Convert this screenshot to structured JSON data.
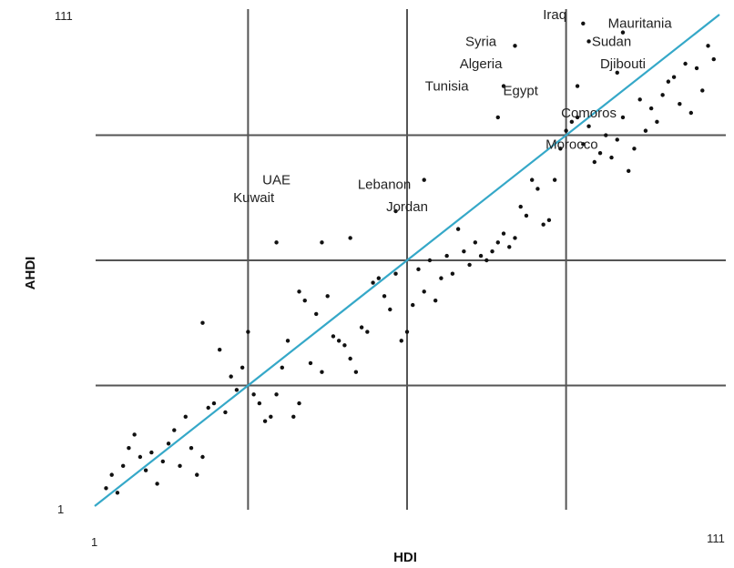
{
  "chart_data": {
    "type": "scatter",
    "title": "",
    "xlabel": "HDI",
    "ylabel": "AHDI",
    "xlim": [
      1,
      111
    ],
    "ylim": [
      1,
      111
    ],
    "x_tick_labels": [
      "1",
      "111"
    ],
    "y_tick_labels": [
      "1",
      "111"
    ],
    "grid_lines": {
      "x": [
        28,
        56,
        84
      ],
      "y": [
        28,
        56,
        84
      ]
    },
    "diagonal": {
      "from": [
        1,
        1
      ],
      "to": [
        111,
        111
      ],
      "color": "#35a8c8"
    },
    "series": [
      {
        "points": [
          [
            3,
            5
          ],
          [
            5,
            4
          ],
          [
            4,
            8
          ],
          [
            6,
            10
          ],
          [
            7,
            14
          ],
          [
            8,
            17
          ],
          [
            9,
            12
          ],
          [
            10,
            9
          ],
          [
            11,
            13
          ],
          [
            12,
            6
          ],
          [
            13,
            11
          ],
          [
            14,
            15
          ],
          [
            15,
            18
          ],
          [
            16,
            10
          ],
          [
            17,
            21
          ],
          [
            18,
            14
          ],
          [
            19,
            8
          ],
          [
            20,
            12
          ],
          [
            21,
            23
          ],
          [
            22,
            24
          ],
          [
            23,
            36
          ],
          [
            24,
            22
          ],
          [
            25,
            30
          ],
          [
            26,
            27
          ],
          [
            27,
            32
          ],
          [
            29,
            26
          ],
          [
            30,
            24
          ],
          [
            31,
            20
          ],
          [
            32,
            21
          ],
          [
            33,
            26
          ],
          [
            34,
            32
          ],
          [
            35,
            38
          ],
          [
            36,
            21
          ],
          [
            37,
            24
          ],
          [
            38,
            47
          ],
          [
            39,
            33
          ],
          [
            40,
            44
          ],
          [
            41,
            31
          ],
          [
            42,
            48
          ],
          [
            43,
            39
          ],
          [
            44,
            38
          ],
          [
            45,
            37
          ],
          [
            46,
            34
          ],
          [
            47,
            31
          ],
          [
            48,
            41
          ],
          [
            49,
            40
          ],
          [
            50,
            51
          ],
          [
            51,
            52
          ],
          [
            52,
            48
          ],
          [
            53,
            45
          ],
          [
            54,
            53
          ],
          [
            55,
            38
          ],
          [
            56,
            40
          ],
          [
            57,
            46
          ],
          [
            58,
            54
          ],
          [
            59,
            49
          ],
          [
            60,
            56
          ],
          [
            61,
            47
          ],
          [
            62,
            52
          ],
          [
            63,
            57
          ],
          [
            64,
            53
          ],
          [
            65,
            63
          ],
          [
            66,
            58
          ],
          [
            67,
            55
          ],
          [
            68,
            60
          ],
          [
            69,
            57
          ],
          [
            70,
            56
          ],
          [
            71,
            58
          ],
          [
            72,
            60
          ],
          [
            73,
            62
          ],
          [
            74,
            59
          ],
          [
            75,
            61
          ],
          [
            76,
            68
          ],
          [
            77,
            66
          ],
          [
            78,
            74
          ],
          [
            79,
            72
          ],
          [
            80,
            64
          ],
          [
            81,
            65
          ],
          [
            82,
            74
          ],
          [
            83,
            81
          ],
          [
            84,
            85
          ],
          [
            85,
            87
          ],
          [
            86,
            88
          ],
          [
            87,
            82
          ],
          [
            88,
            86
          ],
          [
            89,
            78
          ],
          [
            90,
            80
          ],
          [
            91,
            84
          ],
          [
            92,
            79
          ],
          [
            93,
            83
          ],
          [
            94,
            88
          ],
          [
            95,
            76
          ],
          [
            96,
            81
          ],
          [
            97,
            92
          ],
          [
            98,
            85
          ],
          [
            99,
            90
          ],
          [
            100,
            87
          ],
          [
            101,
            93
          ],
          [
            102,
            96
          ],
          [
            103,
            97
          ],
          [
            104,
            91
          ],
          [
            105,
            100
          ],
          [
            106,
            89
          ],
          [
            107,
            99
          ],
          [
            108,
            94
          ],
          [
            109,
            104
          ],
          [
            110,
            101
          ],
          [
            72,
            88
          ],
          [
            73,
            95
          ],
          [
            75,
            104
          ],
          [
            87,
            109
          ],
          [
            88,
            105
          ],
          [
            94,
            107
          ],
          [
            86,
            95
          ],
          [
            93,
            98
          ],
          [
            59,
            74
          ],
          [
            54,
            67
          ],
          [
            46,
            61
          ],
          [
            41,
            60
          ],
          [
            37,
            49
          ],
          [
            33,
            60
          ],
          [
            28,
            40
          ],
          [
            20,
            42
          ]
        ],
        "color": "#111111"
      }
    ],
    "annotations": [
      {
        "text": "Iraq",
        "x": 82,
        "y": 110
      },
      {
        "text": "Mauritania",
        "x": 97,
        "y": 108
      },
      {
        "text": "Sudan",
        "x": 92,
        "y": 104
      },
      {
        "text": "Syria",
        "x": 69,
        "y": 104
      },
      {
        "text": "Algeria",
        "x": 69,
        "y": 99
      },
      {
        "text": "Djibouti",
        "x": 94,
        "y": 99
      },
      {
        "text": "Tunisia",
        "x": 63,
        "y": 94
      },
      {
        "text": "Egypt",
        "x": 76,
        "y": 93
      },
      {
        "text": "Comoros",
        "x": 88,
        "y": 88
      },
      {
        "text": "Morocco",
        "x": 85,
        "y": 81
      },
      {
        "text": "UAE",
        "x": 33,
        "y": 73
      },
      {
        "text": "Kuwait",
        "x": 29,
        "y": 69
      },
      {
        "text": "Lebanon",
        "x": 52,
        "y": 72
      },
      {
        "text": "Jordan",
        "x": 56,
        "y": 67
      }
    ]
  }
}
